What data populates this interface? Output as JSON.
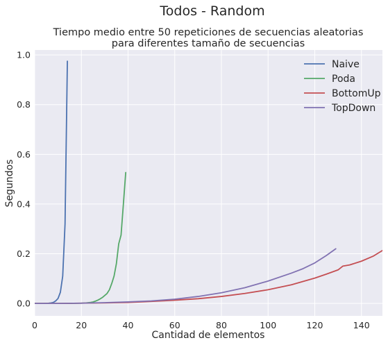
{
  "figure": {
    "suptitle": "Todos - Random"
  },
  "chart_data": {
    "type": "line",
    "title_lines": [
      "Tiempo medio entre 50 repeticiones de secuencias aleatorias",
      "para diferentes tamaño de secuencias"
    ],
    "xlabel": "Cantidad de elementos",
    "ylabel": "Segundos",
    "xlim": [
      0,
      149
    ],
    "ylim": [
      -0.05,
      1.02
    ],
    "xticks": [
      0,
      20,
      40,
      60,
      80,
      100,
      120,
      140
    ],
    "yticks": [
      0.0,
      0.2,
      0.4,
      0.6,
      0.8,
      1.0
    ],
    "xtick_labels": [
      "0",
      "20",
      "40",
      "60",
      "80",
      "100",
      "120",
      "140"
    ],
    "ytick_labels": [
      "0.0",
      "0.2",
      "0.4",
      "0.6",
      "0.8",
      "1.0"
    ],
    "grid": true,
    "legend_position": "top-right",
    "series": [
      {
        "name": "Naive",
        "color": "#4c72b0",
        "x": [
          0,
          2,
          4,
          6,
          7,
          8,
          9,
          10,
          11,
          12,
          13,
          14
        ],
        "y": [
          0,
          0,
          0,
          0.001,
          0.002,
          0.004,
          0.01,
          0.02,
          0.045,
          0.11,
          0.32,
          0.975
        ]
      },
      {
        "name": "Poda",
        "color": "#55a868",
        "x": [
          0,
          5,
          10,
          15,
          20,
          22,
          24,
          25,
          26,
          27,
          28,
          29,
          30,
          31,
          32,
          33,
          34,
          35,
          36,
          37,
          38,
          39
        ],
        "y": [
          0,
          0,
          0,
          0,
          0.001,
          0.002,
          0.004,
          0.006,
          0.009,
          0.013,
          0.018,
          0.024,
          0.032,
          0.04,
          0.055,
          0.08,
          0.11,
          0.16,
          0.24,
          0.275,
          0.4,
          0.527
        ]
      },
      {
        "name": "BottomUp",
        "color": "#c44e52",
        "x": [
          0,
          10,
          20,
          30,
          40,
          50,
          60,
          70,
          80,
          90,
          100,
          110,
          120,
          125,
          130,
          132,
          135,
          140,
          145,
          149
        ],
        "y": [
          0,
          0,
          0.001,
          0.002,
          0.004,
          0.008,
          0.013,
          0.019,
          0.028,
          0.04,
          0.055,
          0.075,
          0.102,
          0.118,
          0.135,
          0.15,
          0.155,
          0.17,
          0.19,
          0.213
        ]
      },
      {
        "name": "TopDown",
        "color": "#8172b2",
        "x": [
          0,
          10,
          20,
          30,
          40,
          50,
          60,
          70,
          80,
          90,
          100,
          110,
          115,
          120,
          125,
          129
        ],
        "y": [
          0,
          0,
          0.001,
          0.003,
          0.006,
          0.01,
          0.017,
          0.028,
          0.043,
          0.063,
          0.09,
          0.122,
          0.14,
          0.163,
          0.193,
          0.22
        ]
      }
    ]
  }
}
